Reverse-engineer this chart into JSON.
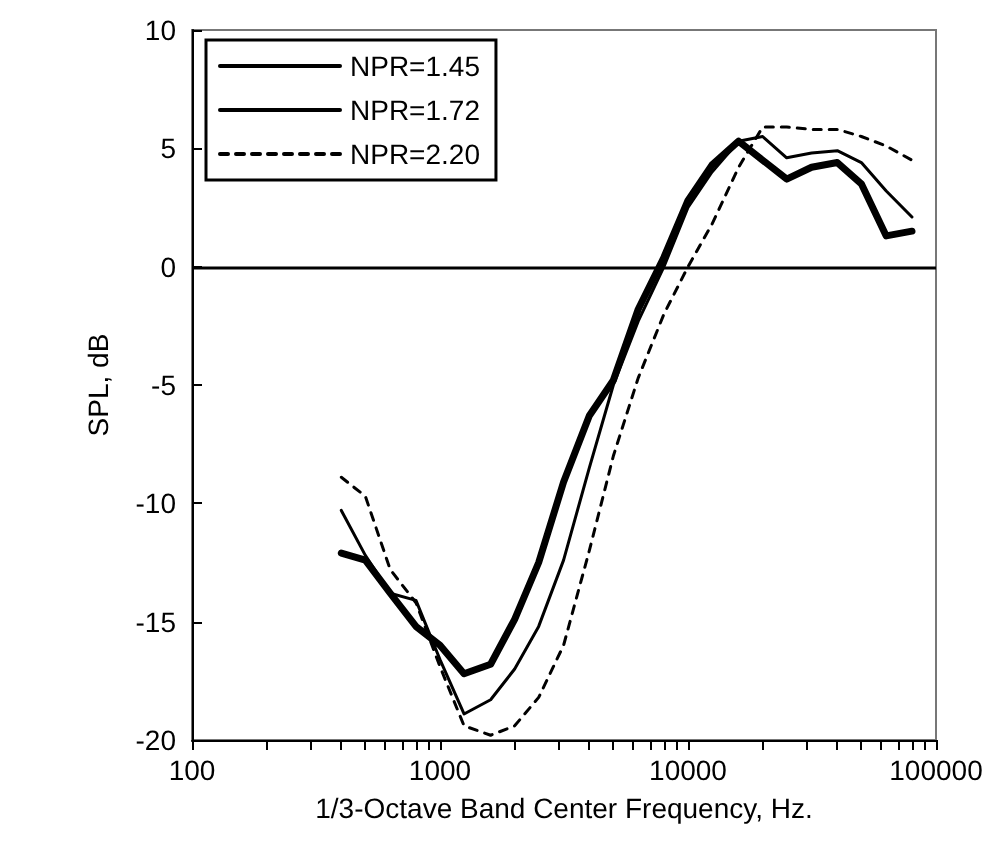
{
  "chart_data": {
    "type": "line",
    "xlabel": "1/3-Octave Band Center Frequency, Hz.",
    "ylabel": "SPL, dB",
    "log": "x",
    "x": [
      400,
      500,
      630,
      800,
      1000,
      1250,
      1600,
      2000,
      2500,
      3150,
      4000,
      5000,
      6300,
      8000,
      10000,
      12500,
      16000,
      20000,
      25000,
      31500,
      40000,
      50000,
      63000,
      80000
    ],
    "series": [
      {
        "name": "NPR=1.45",
        "color": "#000000",
        "line_style": "solid",
        "values": [
          -12.1,
          -12.4,
          -13.8,
          -15.2,
          -16.0,
          -17.2,
          -16.8,
          -14.9,
          -12.5,
          -9.1,
          -6.3,
          -4.8,
          -1.8,
          0.4,
          2.8,
          4.3,
          5.3,
          4.5,
          3.7,
          4.2,
          4.4,
          3.5,
          1.3,
          1.5
        ]
      },
      {
        "name": "NPR=1.72",
        "color": "#000000",
        "line_style": "solid",
        "values": [
          -10.3,
          -12.2,
          -13.8,
          -14.1,
          -16.6,
          -18.9,
          -18.3,
          -17.0,
          -15.2,
          -12.4,
          -8.5,
          -5.0,
          -2.3,
          0.0,
          2.5,
          4.0,
          5.3,
          5.5,
          4.6,
          4.8,
          4.9,
          4.4,
          3.2,
          2.1
        ]
      },
      {
        "name": "NPR=2.20",
        "color": "#000000",
        "line_style": "dashed",
        "values": [
          -8.9,
          -9.7,
          -12.8,
          -14.2,
          -16.9,
          -19.4,
          -19.8,
          -19.4,
          -18.2,
          -16.0,
          -12.0,
          -8.0,
          -4.7,
          -2.0,
          0.0,
          1.8,
          4.2,
          5.9,
          5.9,
          5.8,
          5.8,
          5.5,
          5.1,
          4.5
        ]
      }
    ],
    "xlim": [
      100,
      100000
    ],
    "ylim": [
      -20,
      10
    ],
    "xticks": [
      100,
      {
        "value": 200,
        "label": null
      },
      {
        "value": 300,
        "label": null
      },
      {
        "value": 400,
        "label": null
      },
      {
        "value": 500,
        "label": null
      },
      {
        "value": 600,
        "label": null
      },
      {
        "value": 700,
        "label": null
      },
      {
        "value": 800,
        "label": null
      },
      {
        "value": 900,
        "label": null
      },
      1000,
      {
        "value": 2000,
        "label": null
      },
      {
        "value": 3000,
        "label": null
      },
      {
        "value": 4000,
        "label": null
      },
      {
        "value": 5000,
        "label": null
      },
      {
        "value": 6000,
        "label": null
      },
      {
        "value": 7000,
        "label": null
      },
      {
        "value": 8000,
        "label": null
      },
      {
        "value": 9000,
        "label": null
      },
      10000,
      {
        "value": 20000,
        "label": null
      },
      {
        "value": 30000,
        "label": null
      },
      {
        "value": 40000,
        "label": null
      },
      {
        "value": 50000,
        "label": null
      },
      {
        "value": 60000,
        "label": null
      },
      {
        "value": 70000,
        "label": null
      },
      {
        "value": 80000,
        "label": null
      },
      {
        "value": 90000,
        "label": null
      },
      100000
    ],
    "yticks": [
      -20,
      -15,
      -10,
      -5,
      0,
      5,
      10
    ],
    "ref_lines": [
      {
        "axis": "y",
        "value": 0,
        "color": "#000000"
      }
    ],
    "grid": false,
    "legend": "top left",
    "marker": "none"
  }
}
